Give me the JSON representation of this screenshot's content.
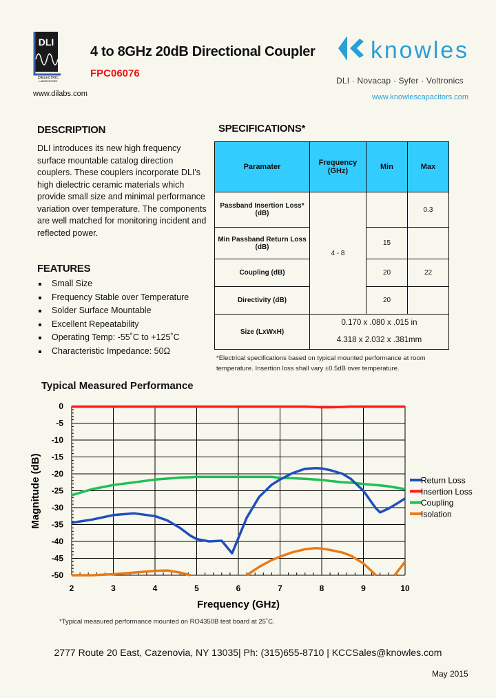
{
  "header": {
    "title": "4 to 8GHz 20dB Directional Coupler",
    "part_number": "FPC06076",
    "dli_logo_text": "DLI",
    "dli_logo_sub": "DIELECTRIC LABORATORIES",
    "dli_url": "www.dilabs.com",
    "knowles_logo_text": "knowles",
    "knowles_brands": "DLI · Novacap · Syfer · Voltronics",
    "knowles_url": "www.knowlescapacitors.com",
    "brand_color": "#2a9fd6"
  },
  "description": {
    "heading": "DESCRIPTION",
    "text": "DLI introduces its new high frequency surface mountable catalog direction couplers.  These couplers incorporate DLI's high dielectric ceramic materials which provide small size and minimal performance variation over temperature.  The components are well matched for monitoring incident and reflected power."
  },
  "features": {
    "heading": "FEATURES",
    "items": [
      "Small Size",
      "Frequency Stable over Temperature",
      "Solder Surface Mountable",
      "Excellent Repeatability",
      "Operating Temp: -55˚C to +125˚C",
      "Characteristic Impedance: 50Ω"
    ]
  },
  "specs": {
    "heading": "SPECIFICATIONS*",
    "header_color": "#33ccff",
    "columns": [
      "Paramater",
      "Frequency (GHz)",
      "Min",
      "Max"
    ],
    "rows": [
      {
        "parameter": "Passband Insertion Loss* (dB)",
        "min": "",
        "max": "0.3"
      },
      {
        "parameter": "Min Passband Return Loss (dB)",
        "min": "15",
        "max": ""
      },
      {
        "parameter": "Coupling (dB)",
        "min": "20",
        "max": "22"
      },
      {
        "parameter": "Directivity (dB)",
        "min": "20",
        "max": ""
      }
    ],
    "frequency": "4 - 8",
    "size": {
      "parameter": "Size (LxWxH)",
      "inches": "0.170 x .080 x .015 in",
      "mm": "4.318 x 2.032 x .381mm"
    },
    "note": "*Electrical specifications based on typical mounted performance at room temperature.  Insertion loss shall vary ±0.5dB over temperature."
  },
  "chart_title": "Typical Measured Performance",
  "chart_data": {
    "type": "line",
    "xlabel": "Frequency  (GHz)",
    "ylabel": "Magnitude (dB)",
    "xlim": [
      2,
      10
    ],
    "ylim": [
      -50,
      0
    ],
    "xticks": [
      "2",
      "3",
      "4",
      "5",
      "6",
      "7",
      "8",
      "9",
      "10"
    ],
    "yticks": [
      "0",
      "-5",
      "-10",
      "-15",
      "-20",
      "-25",
      "-30",
      "-35",
      "-40",
      "-45",
      "-50"
    ],
    "grid": true,
    "legend": "right",
    "x": [
      2,
      2.5,
      3,
      3.5,
      4,
      4.3,
      4.6,
      4.85,
      5,
      5.3,
      5.6,
      5.85,
      6,
      6.2,
      6.5,
      6.8,
      7,
      7.3,
      7.6,
      7.85,
      8,
      8.2,
      8.5,
      8.7,
      9,
      9.2,
      9.3,
      9.4,
      9.6,
      9.75,
      10
    ],
    "series": [
      {
        "name": "Return Loss",
        "color": "#1f4fbf",
        "values": [
          -34.5,
          -33.5,
          -32.2,
          -31.7,
          -32.5,
          -33.8,
          -36,
          -38.3,
          -39.3,
          -40,
          -39.8,
          -43.5,
          -39,
          -33,
          -26.8,
          -23.2,
          -21.7,
          -19.8,
          -18.5,
          -18.3,
          -18.4,
          -18.9,
          -20,
          -21.5,
          -25,
          -28.5,
          -30.2,
          -31.4,
          -30.3,
          -29.2,
          -27.3
        ]
      },
      {
        "name": "Insertion Loss",
        "color": "#ff1a1a",
        "values": [
          -0.1,
          -0.1,
          -0.1,
          -0.1,
          -0.1,
          -0.1,
          -0.1,
          -0.1,
          -0.1,
          -0.1,
          -0.1,
          -0.1,
          -0.1,
          -0.1,
          -0.1,
          -0.1,
          -0.1,
          -0.1,
          -0.1,
          -0.2,
          -0.3,
          -0.3,
          -0.2,
          -0.1,
          -0.1,
          -0.1,
          -0.1,
          -0.1,
          -0.1,
          -0.1,
          -0.1
        ]
      },
      {
        "name": "Coupling",
        "color": "#1fbf55",
        "values": [
          -26.3,
          -24.5,
          -23.3,
          -22.5,
          -21.7,
          -21.4,
          -21.1,
          -21,
          -20.9,
          -20.9,
          -20.9,
          -20.9,
          -20.9,
          -20.9,
          -20.9,
          -20.9,
          -21.2,
          -21.3,
          -21.5,
          -21.7,
          -21.8,
          -22.1,
          -22.5,
          -22.6,
          -23,
          -23.2,
          -23.3,
          -23.4,
          -23.7,
          -24,
          -24.5
        ]
      },
      {
        "name": "Isolation",
        "color": "#e87a17",
        "values": [
          -50,
          -50,
          -49.7,
          -49.2,
          -48.7,
          -48.6,
          -49.2,
          -50,
          null,
          null,
          null,
          null,
          null,
          -50,
          -47.5,
          -45.5,
          -44.5,
          -43.2,
          -42.3,
          -42,
          -42.1,
          -42.5,
          -43.3,
          -44.2,
          -46.5,
          -48.8,
          -50,
          null,
          null,
          -50,
          -46
        ]
      }
    ]
  },
  "chart_note": "*Typical measured performance mounted on RO4350B test board at 25˚C.",
  "footer": {
    "address": "2777 Route 20 East, Cazenovia, NY 13035| Ph: (315)655-8710 | KCCSales@knowles.com",
    "date": "May 2015"
  }
}
